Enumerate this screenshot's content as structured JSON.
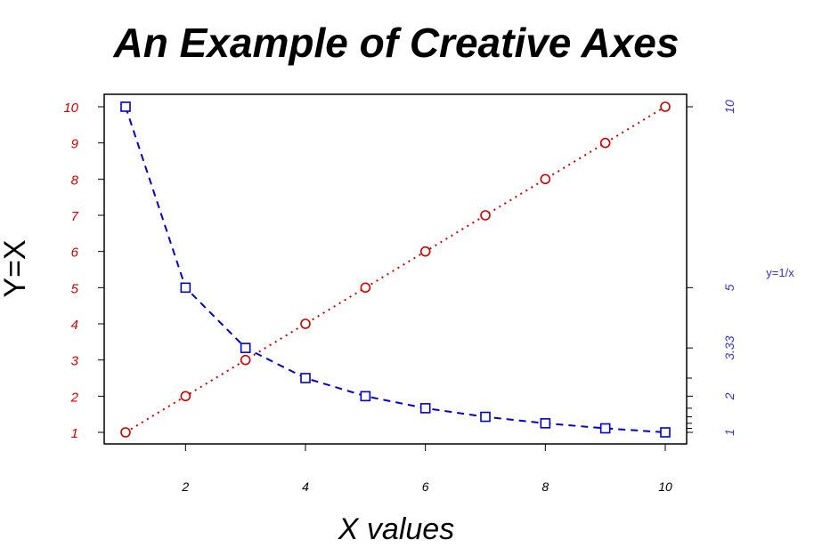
{
  "chart_data": {
    "type": "line",
    "title": "An Example of Creative Axes",
    "xlabel": "X values",
    "ylabel": "Y=X",
    "y2label": "y=1/x",
    "x": [
      1,
      2,
      3,
      4,
      5,
      6,
      7,
      8,
      9,
      10
    ],
    "xlim": [
      1,
      10
    ],
    "x_ticks": [
      2,
      4,
      6,
      8,
      10
    ],
    "x_tick_labels": [
      "2",
      "4",
      "6",
      "8",
      "10"
    ],
    "ylim": [
      1,
      10
    ],
    "y_ticks": [
      1,
      2,
      3,
      4,
      5,
      6,
      7,
      8,
      9,
      10
    ],
    "y_tick_labels": [
      "1",
      "2",
      "3",
      "4",
      "5",
      "6",
      "7",
      "8",
      "9",
      "10"
    ],
    "y2_ticks": [
      1,
      2,
      3.333,
      5,
      10
    ],
    "y2_tick_labels": [
      "1",
      "2",
      "3.33",
      "5",
      "10"
    ],
    "y2_minor_ticks": [
      1.111,
      1.25,
      1.429,
      1.667,
      2.5
    ],
    "series": [
      {
        "values": [
          1,
          2,
          3,
          4,
          5,
          6,
          7,
          8,
          9,
          10
        ],
        "marker": "circle",
        "line": "dotted",
        "color": "#cc0000",
        "axis": "left"
      },
      {
        "values": [
          10,
          5,
          3.333,
          2.5,
          2,
          1.667,
          1.429,
          1.25,
          1.111,
          1
        ],
        "marker": "square",
        "line": "dashed",
        "color": "#0000cc",
        "axis": "right"
      }
    ],
    "grid": false,
    "colors": {
      "left_axis_text": "#cc0000",
      "right_axis_text": "#3333cc",
      "axis": "#000000"
    }
  }
}
